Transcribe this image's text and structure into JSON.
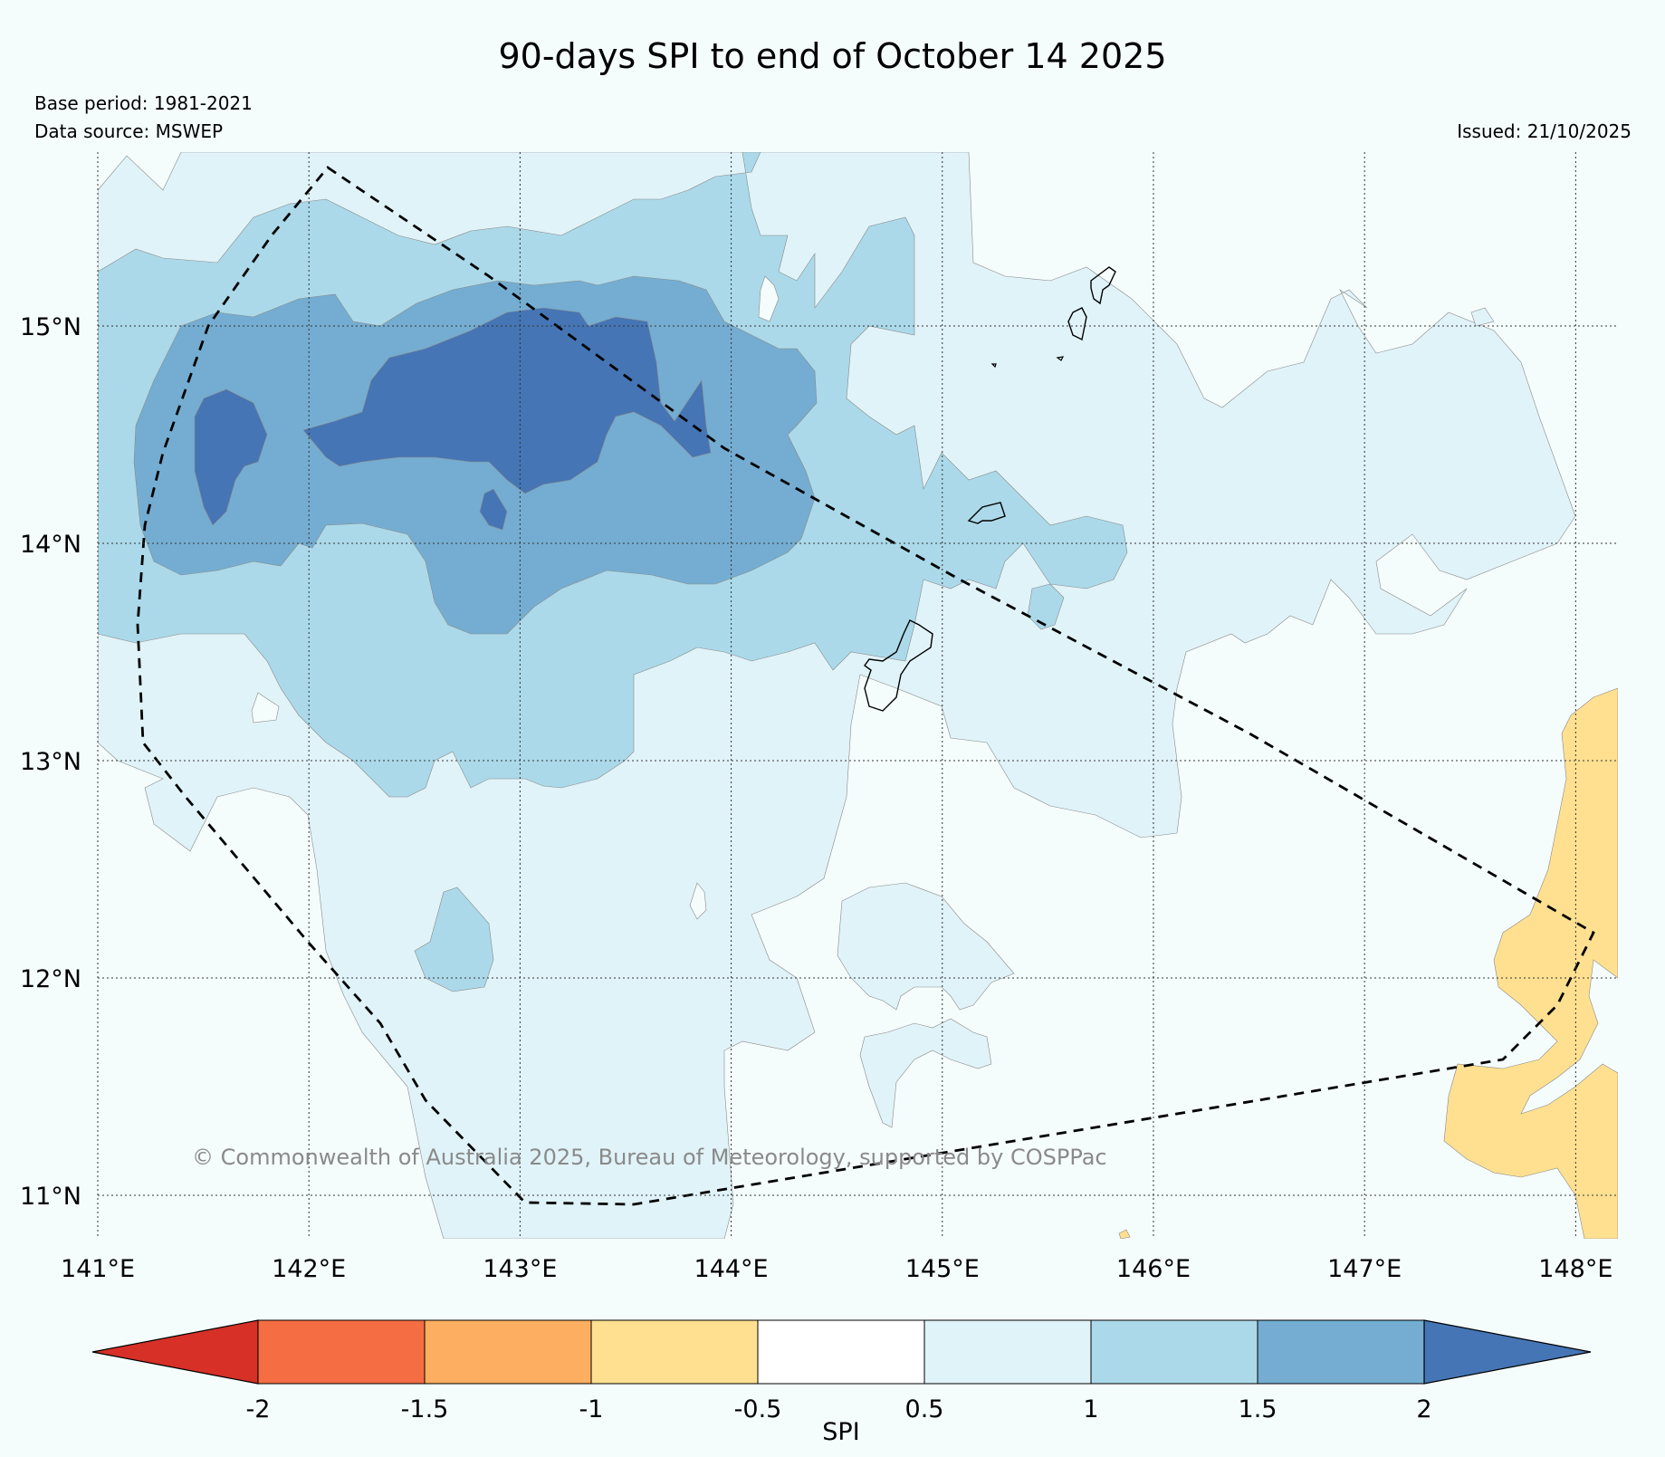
{
  "map": {
    "title": "90-days SPI to end of October 14 2025",
    "base_period": "Base period: 1981-2021",
    "data_source": "Data source: MSWEP",
    "issued": "Issued: 21/10/2025",
    "copyright": "© Commonwealth of Australia 2025, Bureau of Meteorology, supported by COSPPac",
    "lon_labels": [
      "141°E",
      "142°E",
      "143°E",
      "144°E",
      "145°E",
      "146°E",
      "147°E",
      "148°E"
    ],
    "lat_labels": [
      "15°N",
      "14°N",
      "13°N",
      "12°N",
      "11°N"
    ],
    "lon_range": [
      141.0,
      148.2
    ],
    "lat_range": [
      10.8,
      15.8
    ],
    "grid": true
  },
  "colorbar": {
    "label": "SPI",
    "ticks": [
      "-2",
      "-1.5",
      "-1",
      "-0.5",
      "0.5",
      "1",
      "1.5",
      "2"
    ],
    "bins": [
      {
        "range": "< -2",
        "color": "#d73027"
      },
      {
        "range": "-2 to -1.5",
        "color": "#f46d43"
      },
      {
        "range": "-1.5 to -1",
        "color": "#fdae61"
      },
      {
        "range": "-1 to -0.5",
        "color": "#fee090"
      },
      {
        "range": "-0.5 to 0.5",
        "color": "#ffffff"
      },
      {
        "range": "0.5 to 1",
        "color": "#e0f3f8"
      },
      {
        "range": "1 to 1.5",
        "color": "#abd9e9"
      },
      {
        "range": "1.5 to 2",
        "color": "#74add1"
      },
      {
        "range": "> 2",
        "color": "#4575b4"
      }
    ]
  }
}
